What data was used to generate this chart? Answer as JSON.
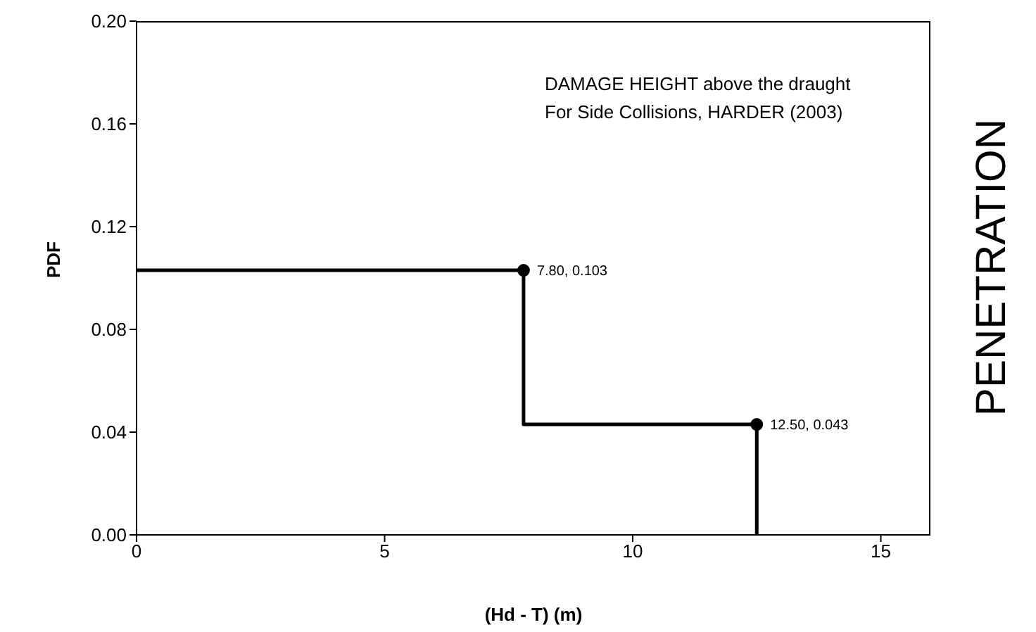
{
  "chart_data": {
    "type": "step",
    "xlabel": "(Hd - T) (m)",
    "ylabel": "PDF",
    "annotations": [
      "DAMAGE HEIGHT above the draught",
      "For Side Collisions, HARDER (2003)",
      "PENETRATION"
    ],
    "xlim": [
      0,
      16
    ],
    "xticks": [
      0,
      5,
      10,
      15
    ],
    "ylim": [
      0,
      0.2
    ],
    "yticks": [
      {
        "value": 0,
        "label": "0.00"
      },
      {
        "value": 0.04,
        "label": "0.04"
      },
      {
        "value": 0.08,
        "label": "0.08"
      },
      {
        "value": 0.12,
        "label": "0.12"
      },
      {
        "value": 0.16,
        "label": "0.16"
      },
      {
        "value": 0.2,
        "label": "0.20"
      }
    ],
    "grid": false,
    "legend": false,
    "series": [
      {
        "color": "#000000",
        "x": [
          0,
          7.8,
          12.5,
          12.5
        ],
        "values": [
          0.103,
          0.103,
          0.043,
          0
        ]
      },
      {
        "type": "scatter",
        "color": "#000000",
        "marker": "circle",
        "x": [
          7.8,
          12.5
        ],
        "values": [
          0.103,
          0.043
        ],
        "value_labels": [
          "7.80, 0.103",
          "12.50, 0.043"
        ]
      }
    ]
  }
}
